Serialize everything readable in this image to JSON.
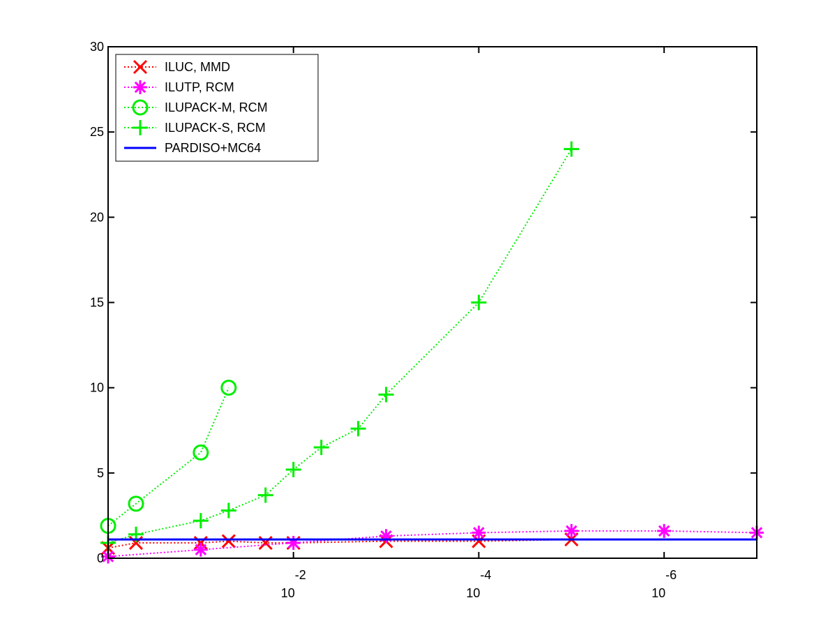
{
  "chart_data": {
    "type": "line",
    "title": "",
    "xlabel": "",
    "ylabel": "",
    "x_scale": "log-reversed",
    "xlim": [
      1,
      1e-07
    ],
    "ylim": [
      0,
      30
    ],
    "grid": false,
    "legend_position": "top-left",
    "y_ticks": [
      {
        "value": 0,
        "label": "0"
      },
      {
        "value": 5,
        "label": "5"
      },
      {
        "value": 10,
        "label": "10"
      },
      {
        "value": 15,
        "label": "15"
      },
      {
        "value": 20,
        "label": "20"
      },
      {
        "value": 25,
        "label": "25"
      },
      {
        "value": 30,
        "label": "30"
      }
    ],
    "x_ticks": [
      {
        "value": 0.01,
        "base": "10",
        "exponent": "-2"
      },
      {
        "value": 0.0001,
        "base": "10",
        "exponent": "-4"
      },
      {
        "value": 1e-06,
        "base": "10",
        "exponent": "-6"
      }
    ],
    "series": [
      {
        "name": "ILUC, MMD",
        "color": "#ff0000",
        "marker": "x",
        "line_style": "dotted",
        "x": [
          1,
          0.5,
          0.1,
          0.05,
          0.02,
          0.01,
          0.001,
          0.0001,
          1e-05
        ],
        "y": [
          0.6,
          0.9,
          0.9,
          1.0,
          0.9,
          0.9,
          1.0,
          1.0,
          1.1
        ]
      },
      {
        "name": "ILUTP, RCM",
        "color": "#ff00ff",
        "marker": "asterisk",
        "line_style": "dotted",
        "x": [
          1,
          0.1,
          0.01,
          0.001,
          0.0001,
          1e-05,
          1e-06,
          1e-07
        ],
        "y": [
          0.1,
          0.5,
          0.9,
          1.3,
          1.5,
          1.6,
          1.6,
          1.5
        ]
      },
      {
        "name": "ILUPACK-M, RCM",
        "color": "#00ee00",
        "marker": "circle",
        "line_style": "dotted",
        "x": [
          1,
          0.5,
          0.1,
          0.05
        ],
        "y": [
          1.9,
          3.2,
          6.2,
          10.0
        ]
      },
      {
        "name": "ILUPACK-S, RCM",
        "color": "#00ee00",
        "marker": "plus",
        "line_style": "dotted",
        "x": [
          1,
          0.5,
          0.1,
          0.05,
          0.02,
          0.01,
          0.005,
          0.002,
          0.001,
          0.0001,
          1e-05
        ],
        "y": [
          0.9,
          1.4,
          2.2,
          2.8,
          3.7,
          5.2,
          6.5,
          7.6,
          9.6,
          15.0,
          24.0
        ]
      },
      {
        "name": "PARDISO+MC64",
        "color": "#0000ff",
        "marker": "none",
        "line_style": "solid",
        "x": [
          1,
          1e-07
        ],
        "y": [
          1.1,
          1.1
        ]
      }
    ]
  }
}
